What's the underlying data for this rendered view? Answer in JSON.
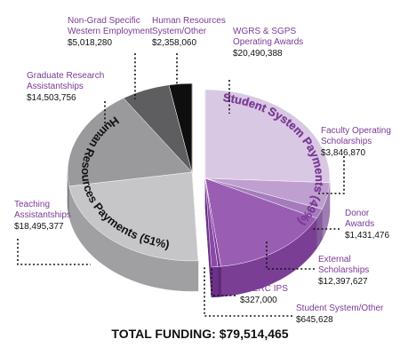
{
  "chart_data": {
    "type": "pie",
    "style": "3d-exploded",
    "total_label": "TOTAL FUNDING: $79,514,465",
    "groups": [
      {
        "key": "student",
        "label": "Student System Payments (49%)",
        "color": "#7a3a96"
      },
      {
        "key": "hr",
        "label": "Human Resources Payments (51%)",
        "color": "#222222"
      }
    ],
    "slices": [
      {
        "group": "student",
        "name_lines": [
          "WGRS & SGPS",
          "Operating Awards"
        ],
        "value_text": "$20,490,388",
        "value": 20490388,
        "color": "#d9c8e3",
        "side": "#b8a2c6",
        "label_color": "#7a3a96"
      },
      {
        "group": "student",
        "name_lines": [
          "Faculty Operating",
          "Scholarships"
        ],
        "value_text": "$3,846,870",
        "value": 3846870,
        "color": "#bf9fcf",
        "side": "#9f7db2",
        "label_color": "#7a3a96"
      },
      {
        "group": "student",
        "name_lines": [
          "Donor",
          "Awards"
        ],
        "value_text": "$1,431,476",
        "value": 1431476,
        "color": "#a67bbd",
        "side": "#845b9b",
        "label_color": "#7a3a96"
      },
      {
        "group": "student",
        "name_lines": [
          "External",
          "Scholarships"
        ],
        "value_text": "$12,397,627",
        "value": 12397627,
        "color": "#9a5db4",
        "side": "#7a3f94",
        "label_color": "#7a3a96"
      },
      {
        "group": "student",
        "name_lines": [
          "NSERC IPS"
        ],
        "value_text": "$327,000",
        "value": 327000,
        "color": "#7e3b9a",
        "side": "#5f2978",
        "label_color": "#7a3a96"
      },
      {
        "group": "student",
        "name_lines": [
          "Student System/Other"
        ],
        "value_text": "$645,628",
        "value": 645628,
        "color": "#8a48a8",
        "side": "#6a3186",
        "label_color": "#7a3a96"
      },
      {
        "group": "hr",
        "name_lines": [
          "Teaching",
          "Assistantships"
        ],
        "value_text": "$18,495,377",
        "value": 18495377,
        "color": "#c6c6c8",
        "side": "#a0a0a3",
        "label_color": "#7a3a96"
      },
      {
        "group": "hr",
        "name_lines": [
          "Graduate Research",
          "Assistantships"
        ],
        "value_text": "$14,503,756",
        "value": 14503756,
        "color": "#9a9a9c",
        "side": "#7a7a7d",
        "label_color": "#7a3a96"
      },
      {
        "group": "hr",
        "name_lines": [
          "Non-Grad Specific",
          "Western Employment"
        ],
        "value_text": "$5,018,280",
        "value": 5018280,
        "color": "#5e5e60",
        "side": "#464648",
        "label_color": "#7a3a96"
      },
      {
        "group": "hr",
        "name_lines": [
          "Human Resources",
          "System/Other"
        ],
        "value_text": "$2,358,060",
        "value": 2358060,
        "color": "#0e0e0e",
        "side": "#000000",
        "label_color": "#7a3a96"
      }
    ]
  }
}
